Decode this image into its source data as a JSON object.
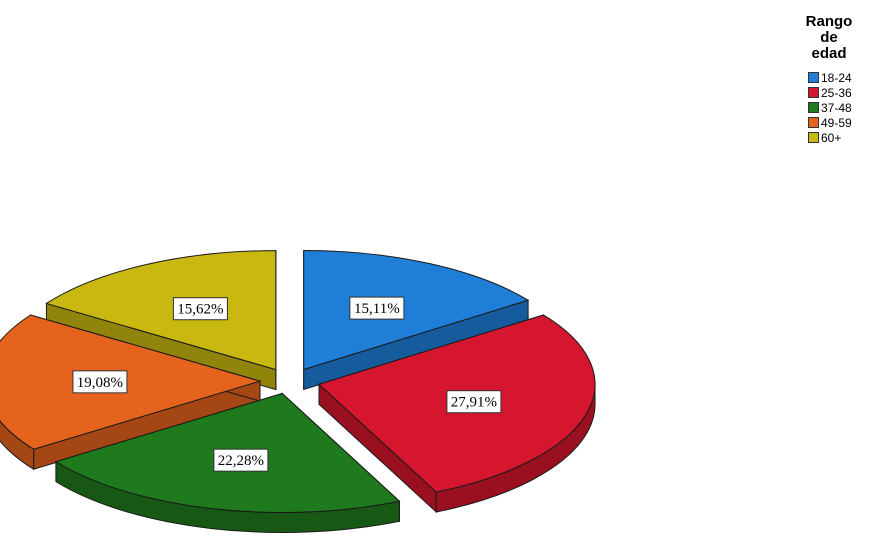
{
  "chart_data": {
    "type": "pie",
    "legend_title": "Rango de edad",
    "legend_title_lines": [
      "Rango",
      "de",
      "edad"
    ],
    "legend_position": "top-right",
    "exploded": true,
    "three_d": true,
    "slices": [
      {
        "label": "18-24",
        "value": 15.11,
        "value_label": "15,11%",
        "color": "#1f7ed8"
      },
      {
        "label": "25-36",
        "value": 27.91,
        "value_label": "27,91%",
        "color": "#d6162e"
      },
      {
        "label": "37-48",
        "value": 22.28,
        "value_label": "22,28%",
        "color": "#1e7a1c"
      },
      {
        "label": "49-59",
        "value": 19.08,
        "value_label": "19,08%",
        "color": "#e5631c"
      },
      {
        "label": "60+",
        "value": 15.62,
        "value_label": "15,62%",
        "color": "#c9b80f"
      }
    ]
  }
}
